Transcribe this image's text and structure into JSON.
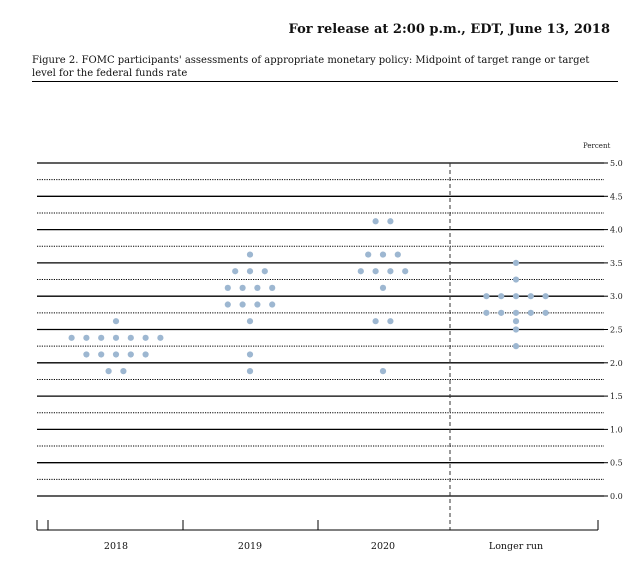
{
  "header": {
    "release": "For release at 2:00 p.m., EDT, June 13, 2018",
    "caption": "Figure 2. FOMC participants' assessments of appropriate monetary policy: Midpoint of target range or target level for the federal funds rate"
  },
  "chart_data": {
    "type": "scatter",
    "title": "",
    "ylabel": "Percent",
    "ylim": [
      0.0,
      5.0
    ],
    "yticks": [
      "5.0",
      "4.5",
      "4.0",
      "3.5",
      "3.0",
      "2.5",
      "2.0",
      "1.5",
      "1.0",
      "0.5",
      "0.0"
    ],
    "categories": [
      "2018",
      "2019",
      "2020",
      "Longer run"
    ],
    "dot_color": "#9db7d1",
    "series": [
      {
        "category": "2018",
        "points": [
          {
            "y": 2.625,
            "count": 1
          },
          {
            "y": 2.375,
            "count": 7
          },
          {
            "y": 2.125,
            "count": 5
          },
          {
            "y": 1.875,
            "count": 2
          }
        ]
      },
      {
        "category": "2019",
        "points": [
          {
            "y": 3.625,
            "count": 1
          },
          {
            "y": 3.375,
            "count": 3
          },
          {
            "y": 3.125,
            "count": 4
          },
          {
            "y": 2.875,
            "count": 4
          },
          {
            "y": 2.625,
            "count": 1
          },
          {
            "y": 2.125,
            "count": 1
          },
          {
            "y": 1.875,
            "count": 1
          }
        ]
      },
      {
        "category": "2020",
        "points": [
          {
            "y": 4.125,
            "count": 2
          },
          {
            "y": 3.625,
            "count": 3
          },
          {
            "y": 3.375,
            "count": 4
          },
          {
            "y": 3.125,
            "count": 1
          },
          {
            "y": 2.625,
            "count": 2
          },
          {
            "y": 1.875,
            "count": 1
          }
        ]
      },
      {
        "category": "Longer run",
        "points": [
          {
            "y": 3.5,
            "count": 1
          },
          {
            "y": 3.25,
            "count": 1
          },
          {
            "y": 3.0,
            "count": 5
          },
          {
            "y": 2.75,
            "count": 5
          },
          {
            "y": 2.625,
            "count": 1
          },
          {
            "y": 2.5,
            "count": 1
          },
          {
            "y": 2.25,
            "count": 1
          }
        ]
      }
    ]
  }
}
